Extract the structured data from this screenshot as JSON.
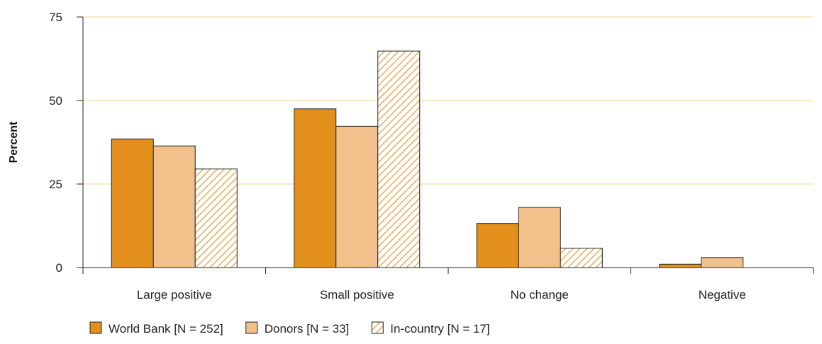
{
  "chart_data": {
    "type": "bar",
    "ylabel": "Percent",
    "xlabel": "",
    "ylim": [
      0,
      75
    ],
    "yticks": [
      0,
      25,
      50,
      75
    ],
    "grid": true,
    "legend_position": "bottom-left",
    "categories": [
      "Large positive",
      "Small positive",
      "No change",
      "Negative"
    ],
    "series": [
      {
        "name": "World Bank [N = 252]",
        "values": [
          38.5,
          47.5,
          13.2,
          1.0
        ],
        "color": "#e38f1c",
        "pattern": "solid"
      },
      {
        "name": "Donors [N = 33]",
        "values": [
          36.4,
          42.3,
          18.0,
          3.0
        ],
        "color": "#f2c08b",
        "pattern": "solid"
      },
      {
        "name": "In-country [N = 17]",
        "values": [
          29.5,
          64.8,
          5.8,
          0
        ],
        "color": "#e38f1c",
        "pattern": "hatch"
      }
    ],
    "gridline_color": "#f3dca8"
  }
}
